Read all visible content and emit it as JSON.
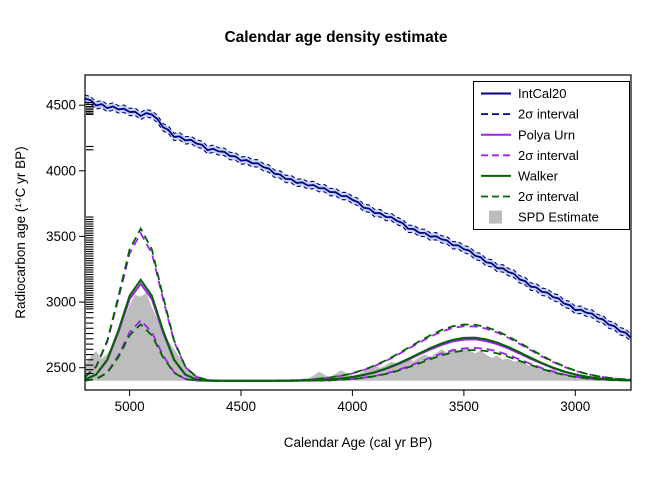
{
  "legend": {
    "position": "top-right",
    "items": [
      {
        "key": "intcal20",
        "label": "IntCal20",
        "color": "#00008B",
        "style": "solid"
      },
      {
        "key": "intcal20-2sigma",
        "label": "2σ interval",
        "color": "#00008B",
        "style": "dashed"
      },
      {
        "key": "polya-urn",
        "label": "Polya Urn",
        "color": "#A020F0",
        "style": "solid"
      },
      {
        "key": "polya-urn-2sigma",
        "label": "2σ interval",
        "color": "#A020F0",
        "style": "dashed"
      },
      {
        "key": "walker",
        "label": "Walker",
        "color": "#006400",
        "style": "solid"
      },
      {
        "key": "walker-2sigma",
        "label": "2σ interval",
        "color": "#006400",
        "style": "dashed"
      },
      {
        "key": "spd-estimate",
        "label": "SPD Estimate",
        "color": "#BDBDBD",
        "style": "fill"
      }
    ]
  },
  "chart_data": {
    "type": "line",
    "title": "Calendar age density estimate",
    "xlabel": "Calendar Age (cal yr BP)",
    "ylabel": "Radiocarbon age (¹⁴C yr BP)",
    "xlim": [
      5200,
      2750
    ],
    "ylim": [
      2330,
      4730
    ],
    "x_axis_reversed": true,
    "grid": false,
    "background": "#ffffff",
    "x_ticks": [
      5000,
      4500,
      4000,
      3500,
      3000
    ],
    "y_ticks": [
      2500,
      3000,
      3500,
      4000,
      4500
    ],
    "series": {
      "intcal20": {
        "name": "IntCal20 calibration curve",
        "color": "#00008B",
        "band_color": "#AEC6E8",
        "sigma": 28,
        "x_start": 5200,
        "x_step": -25,
        "values": [
          4550,
          4538,
          4498,
          4508,
          4478,
          4490,
          4468,
          4473,
          4448,
          4450,
          4418,
          4440,
          4428,
          4395,
          4332,
          4310,
          4258,
          4262,
          4232,
          4236,
          4208,
          4198,
          4158,
          4168,
          4148,
          4145,
          4113,
          4110,
          4078,
          4082,
          4058,
          4057,
          4028,
          4017,
          3978,
          3972,
          3938,
          3937,
          3908,
          3912,
          3888,
          3892,
          3868,
          3867,
          3838,
          3837,
          3808,
          3807,
          3778,
          3762,
          3718,
          3712,
          3678,
          3677,
          3648,
          3647,
          3618,
          3602,
          3558,
          3557,
          3528,
          3527,
          3498,
          3502,
          3478,
          3470,
          3433,
          3432,
          3403,
          3392,
          3353,
          3342,
          3303,
          3295,
          3258,
          3257,
          3228,
          3215,
          3173,
          3160,
          3118,
          3112,
          3078,
          3072,
          3038,
          3027,
          2988,
          2977,
          2938,
          2942,
          2918,
          2912,
          2878,
          2867,
          2828,
          2817,
          2778,
          2767,
          2728
        ]
      },
      "polya_urn": {
        "name": "Polya Urn",
        "color": "#A020F0",
        "x_start": 5200,
        "x_step": -50,
        "mean": [
          2410,
          2446,
          2556,
          2770,
          3022,
          3139,
          3022,
          2770,
          2556,
          2446,
          2410,
          2402,
          2400,
          2400,
          2400,
          2400,
          2400,
          2400,
          2401,
          2402,
          2403,
          2406,
          2410,
          2417,
          2428,
          2443,
          2463,
          2490,
          2523,
          2560,
          2601,
          2639,
          2674,
          2700,
          2714,
          2716,
          2703,
          2679,
          2647,
          2608,
          2568,
          2531,
          2497,
          2468,
          2447,
          2431,
          2419,
          2412,
          2407,
          2404
        ],
        "upper": [
          2428,
          2506,
          2698,
          3024,
          3371,
          3525,
          3371,
          3024,
          2698,
          2506,
          2428,
          2406,
          2401,
          2400,
          2400,
          2400,
          2400,
          2400,
          2403,
          2405,
          2409,
          2416,
          2424,
          2438,
          2456,
          2481,
          2513,
          2551,
          2596,
          2643,
          2692,
          2737,
          2775,
          2803,
          2816,
          2814,
          2798,
          2768,
          2728,
          2682,
          2634,
          2586,
          2544,
          2507,
          2476,
          2452,
          2435,
          2422,
          2414,
          2408
        ],
        "lower": [
          2402,
          2414,
          2465,
          2594,
          2770,
          2860,
          2770,
          2594,
          2465,
          2414,
          2402,
          2400,
          2400,
          2400,
          2400,
          2400,
          2400,
          2400,
          2400,
          2401,
          2401,
          2402,
          2404,
          2409,
          2414,
          2424,
          2437,
          2456,
          2480,
          2509,
          2542,
          2577,
          2608,
          2632,
          2647,
          2651,
          2643,
          2624,
          2596,
          2563,
          2529,
          2497,
          2470,
          2448,
          2431,
          2419,
          2412,
          2406,
          2403,
          2402
        ]
      },
      "walker": {
        "name": "Walker",
        "color": "#006400",
        "x_start": 5200,
        "x_step": -50,
        "mean": [
          2410,
          2448,
          2562,
          2785,
          3048,
          3170,
          3048,
          2785,
          2562,
          2448,
          2410,
          2402,
          2400,
          2400,
          2400,
          2400,
          2400,
          2400,
          2401,
          2402,
          2403,
          2406,
          2410,
          2418,
          2429,
          2445,
          2466,
          2494,
          2528,
          2567,
          2609,
          2649,
          2685,
          2712,
          2727,
          2729,
          2716,
          2691,
          2657,
          2617,
          2575,
          2536,
          2501,
          2471,
          2449,
          2432,
          2420,
          2412,
          2407,
          2404
        ],
        "upper": [
          2429,
          2509,
          2707,
          3043,
          3401,
          3560,
          3401,
          3043,
          2707,
          2509,
          2429,
          2406,
          2401,
          2400,
          2400,
          2400,
          2400,
          2400,
          2403,
          2405,
          2409,
          2416,
          2425,
          2439,
          2458,
          2484,
          2517,
          2556,
          2602,
          2651,
          2701,
          2747,
          2787,
          2815,
          2829,
          2827,
          2810,
          2779,
          2738,
          2691,
          2641,
          2592,
          2548,
          2510,
          2478,
          2454,
          2436,
          2423,
          2414,
          2408
        ],
        "lower": [
          2402,
          2413,
          2461,
          2581,
          2746,
          2830,
          2746,
          2581,
          2461,
          2413,
          2402,
          2400,
          2400,
          2400,
          2400,
          2400,
          2400,
          2400,
          2400,
          2401,
          2401,
          2402,
          2404,
          2408,
          2413,
          2422,
          2435,
          2452,
          2475,
          2502,
          2533,
          2565,
          2594,
          2617,
          2631,
          2635,
          2627,
          2609,
          2583,
          2552,
          2521,
          2491,
          2465,
          2445,
          2429,
          2418,
          2411,
          2406,
          2403,
          2402
        ]
      },
      "spd": {
        "name": "SPD Estimate",
        "color": "#BDBDBD",
        "baseline": 2400,
        "x_start": 5200,
        "x_step": -25,
        "values": [
          2520,
          2585,
          2625,
          2570,
          2605,
          2680,
          2760,
          2870,
          2980,
          3055,
          3040,
          3070,
          2960,
          2870,
          2780,
          2700,
          2640,
          2580,
          2520,
          2475,
          2445,
          2425,
          2415,
          2408,
          2405,
          2403,
          2402,
          2402,
          2403,
          2405,
          2408,
          2406,
          2404,
          2403,
          2403,
          2404,
          2406,
          2408,
          2412,
          2410,
          2415,
          2440,
          2470,
          2445,
          2430,
          2455,
          2480,
          2455,
          2440,
          2450,
          2470,
          2490,
          2515,
          2500,
          2520,
          2545,
          2535,
          2555,
          2570,
          2550,
          2580,
          2600,
          2580,
          2610,
          2640,
          2615,
          2650,
          2625,
          2655,
          2630,
          2610,
          2630,
          2600,
          2575,
          2590,
          2560,
          2570,
          2545,
          2555,
          2530,
          2510,
          2520,
          2495,
          2480,
          2490,
          2465,
          2455,
          2445,
          2435,
          2430,
          2425,
          2420,
          2415,
          2412,
          2410,
          2408,
          2406,
          2404,
          2403
        ]
      }
    },
    "rug": {
      "color": "#000000",
      "values": [
        4520,
        4505,
        4490,
        4478,
        4465,
        4452,
        4440,
        4430,
        4185,
        4160,
        3648,
        3630,
        3612,
        3595,
        3578,
        3560,
        3542,
        3525,
        3508,
        3490,
        3472,
        3455,
        3438,
        3420,
        3402,
        3385,
        3368,
        3350,
        3332,
        3315,
        3298,
        3280,
        3262,
        3245,
        3228,
        3210,
        3192,
        3175,
        3158,
        3140,
        3122,
        3105,
        3088,
        3070,
        3052,
        3035,
        3018,
        3000,
        2982,
        2965,
        2948,
        2920,
        2880,
        2840,
        2800,
        2760,
        2720,
        2680,
        2640,
        2600,
        2560,
        2520,
        2485,
        2455
      ]
    }
  }
}
